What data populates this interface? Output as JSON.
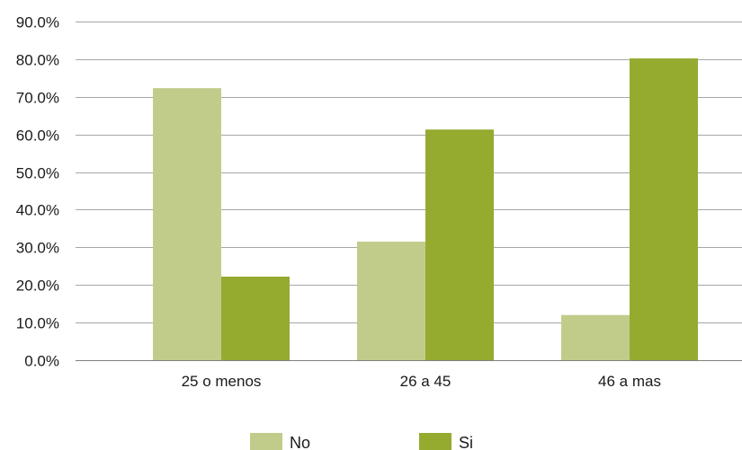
{
  "chart_data": {
    "type": "bar",
    "categories": [
      "25 o menos",
      "26 a 45",
      "46 a mas"
    ],
    "series": [
      {
        "name": "No",
        "values": [
          72.3,
          31.5,
          12.0
        ],
        "color": "#c2cc8a"
      },
      {
        "name": "Si",
        "values": [
          22.2,
          61.3,
          80.2
        ],
        "color": "#94ab30"
      }
    ],
    "yticks": [
      "0.0%",
      "10.0%",
      "20.0%",
      "30.0%",
      "40.0%",
      "50.0%",
      "60.0%",
      "70.0%",
      "80.0%",
      "90.0%"
    ],
    "ylim": [
      0,
      90
    ],
    "ytick_step": 10,
    "grid": true,
    "legend_position": "bottom",
    "title": "",
    "xlabel": "",
    "ylabel": ""
  }
}
